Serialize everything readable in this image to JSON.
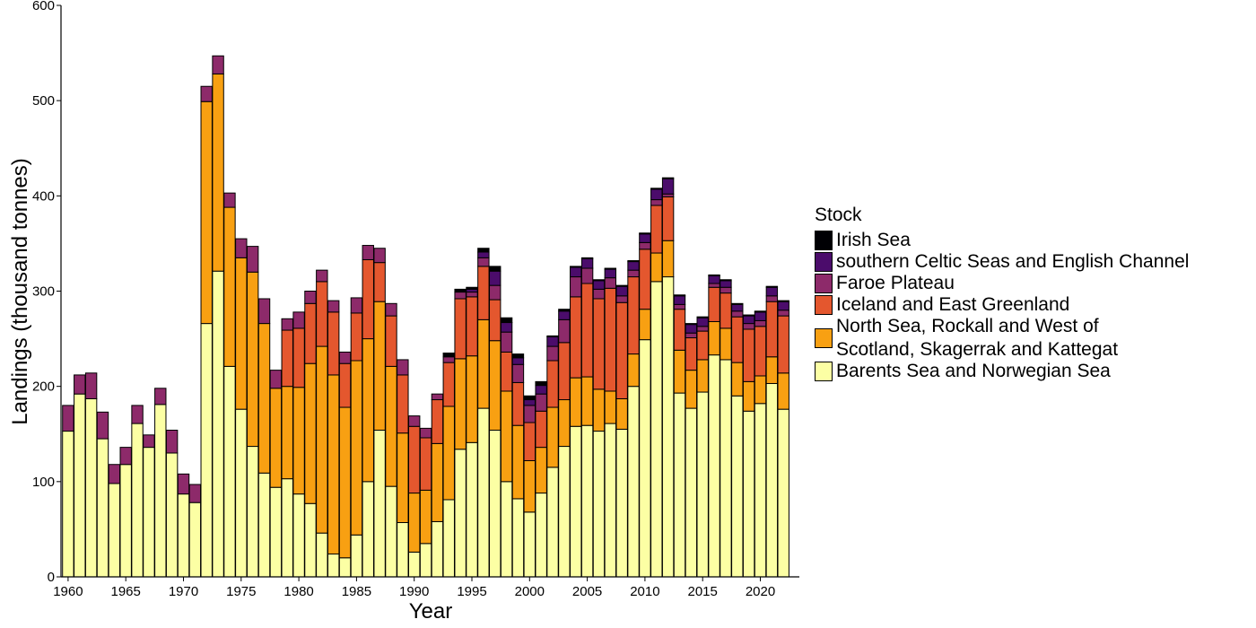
{
  "chart_data": {
    "type": "bar",
    "stacked": true,
    "title": "",
    "xlabel": "Year",
    "ylabel": "Landings (thousand tonnes)",
    "ylim": [
      0,
      600
    ],
    "yticks": [
      0,
      100,
      200,
      300,
      400,
      500,
      600
    ],
    "xticks": [
      1960,
      1965,
      1970,
      1975,
      1980,
      1985,
      1990,
      1995,
      2000,
      2005,
      2010,
      2015,
      2020
    ],
    "grid": false,
    "legend_title": "Stock",
    "legend_position": "right",
    "categories": [
      1960,
      1961,
      1962,
      1963,
      1964,
      1965,
      1966,
      1967,
      1968,
      1969,
      1970,
      1971,
      1972,
      1973,
      1974,
      1975,
      1976,
      1977,
      1978,
      1979,
      1980,
      1981,
      1982,
      1983,
      1984,
      1985,
      1986,
      1987,
      1988,
      1989,
      1990,
      1991,
      1992,
      1993,
      1994,
      1995,
      1996,
      1997,
      1998,
      1999,
      2000,
      2001,
      2002,
      2003,
      2004,
      2005,
      2006,
      2007,
      2008,
      2009,
      2010,
      2011,
      2012,
      2013,
      2014,
      2015,
      2016,
      2017,
      2018,
      2019,
      2020,
      2021,
      2022
    ],
    "series": [
      {
        "name": "Barents Sea and Norwegian Sea",
        "color": "#FCFFA4",
        "values": [
          153,
          192,
          187,
          145,
          98,
          118,
          161,
          136,
          181,
          130,
          87,
          78,
          266,
          321,
          221,
          176,
          137,
          109,
          94,
          103,
          87,
          77,
          46,
          24,
          20,
          44,
          100,
          154,
          95,
          57,
          26,
          35,
          58,
          81,
          134,
          141,
          177,
          154,
          100,
          82,
          68,
          88,
          115,
          137,
          158,
          159,
          153,
          161,
          155,
          200,
          249,
          310,
          315,
          193,
          177,
          194,
          233,
          228,
          190,
          174,
          182,
          203,
          176
        ]
      },
      {
        "name": "North Sea, Rockall and West of\nScotland, Skagerrak and Kattegat",
        "color": "#F8A012",
        "values": [
          0,
          0,
          0,
          0,
          0,
          0,
          0,
          0,
          0,
          0,
          0,
          0,
          233,
          207,
          167,
          159,
          183,
          157,
          104,
          97,
          112,
          147,
          196,
          188,
          158,
          183,
          150,
          135,
          126,
          94,
          62,
          56,
          82,
          98,
          95,
          91,
          93,
          94,
          95,
          77,
          54,
          48,
          63,
          49,
          51,
          51,
          44,
          34,
          32,
          34,
          32,
          30,
          38,
          45,
          40,
          34,
          35,
          33,
          35,
          31,
          29,
          28,
          38
        ]
      },
      {
        "name": "Iceland and East Greenland",
        "color": "#E4572E",
        "values": [
          0,
          0,
          0,
          0,
          0,
          0,
          0,
          0,
          0,
          0,
          0,
          0,
          0,
          0,
          0,
          0,
          0,
          0,
          0,
          59,
          62,
          63,
          68,
          66,
          46,
          50,
          83,
          41,
          53,
          61,
          70,
          55,
          46,
          46,
          63,
          62,
          56,
          43,
          41,
          45,
          40,
          38,
          49,
          60,
          85,
          98,
          95,
          108,
          101,
          81,
          63,
          50,
          46,
          43,
          34,
          30,
          36,
          37,
          48,
          55,
          52,
          58,
          60
        ]
      },
      {
        "name": "Faroe Plateau",
        "color": "#8D2A6A",
        "values": [
          27,
          20,
          27,
          28,
          20,
          18,
          19,
          13,
          17,
          24,
          21,
          19,
          16,
          19,
          15,
          20,
          27,
          26,
          19,
          12,
          17,
          13,
          12,
          12,
          12,
          16,
          15,
          15,
          13,
          16,
          11,
          10,
          6,
          6,
          7,
          5,
          9,
          15,
          21,
          19,
          18,
          18,
          15,
          24,
          21,
          16,
          10,
          11,
          7,
          7,
          7,
          6,
          3,
          5,
          5,
          5,
          4,
          6,
          6,
          6,
          6,
          6,
          6
        ]
      },
      {
        "name": "southern Celtic Seas and English Channel",
        "color": "#4B0C6B",
        "values": [
          0,
          0,
          0,
          0,
          0,
          0,
          0,
          0,
          0,
          0,
          0,
          0,
          0,
          0,
          0,
          0,
          0,
          0,
          0,
          0,
          0,
          0,
          0,
          0,
          0,
          0,
          0,
          0,
          0,
          0,
          0,
          0,
          0,
          0,
          0,
          3,
          6,
          15,
          10,
          7,
          6,
          9,
          10,
          9,
          10,
          10,
          9,
          9,
          10,
          9,
          9,
          11,
          16,
          9,
          9,
          9,
          8,
          7,
          7,
          8,
          9,
          9,
          9
        ]
      },
      {
        "name": "Irish Sea",
        "color": "#000004",
        "values": [
          0,
          0,
          0,
          0,
          0,
          0,
          0,
          0,
          0,
          0,
          0,
          0,
          0,
          0,
          0,
          0,
          0,
          0,
          0,
          0,
          0,
          0,
          0,
          0,
          0,
          0,
          0,
          0,
          0,
          0,
          0,
          0,
          0,
          4,
          3,
          2,
          4,
          5,
          5,
          4,
          4,
          4,
          1,
          2,
          1,
          1,
          1,
          1,
          1,
          1,
          1,
          1,
          1,
          1,
          1,
          1,
          1,
          1,
          1,
          1,
          1,
          1,
          1
        ]
      }
    ]
  }
}
